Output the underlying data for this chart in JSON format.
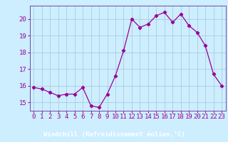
{
  "x": [
    0,
    1,
    2,
    3,
    4,
    5,
    6,
    7,
    8,
    9,
    10,
    11,
    12,
    13,
    14,
    15,
    16,
    17,
    18,
    19,
    20,
    21,
    22,
    23
  ],
  "y": [
    15.9,
    15.8,
    15.6,
    15.4,
    15.5,
    15.5,
    15.9,
    14.8,
    14.7,
    15.5,
    16.6,
    18.1,
    20.0,
    19.5,
    19.7,
    20.2,
    20.4,
    19.8,
    20.3,
    19.6,
    19.2,
    18.4,
    16.7,
    16.0
  ],
  "line_color": "#990099",
  "marker": "D",
  "marker_size": 2.2,
  "bg_color": "#cceeff",
  "footer_bg": "#9966bb",
  "grid_color": "#aaccdd",
  "xlabel": "Windchill (Refroidissement éolien,°C)",
  "ylim": [
    14.5,
    20.8
  ],
  "xlim": [
    -0.5,
    23.5
  ],
  "yticks": [
    15,
    16,
    17,
    18,
    19,
    20
  ],
  "xticks": [
    0,
    1,
    2,
    3,
    4,
    5,
    6,
    7,
    8,
    9,
    10,
    11,
    12,
    13,
    14,
    15,
    16,
    17,
    18,
    19,
    20,
    21,
    22,
    23
  ],
  "xlabel_fontsize": 6.5,
  "tick_fontsize": 6.5,
  "spine_color": "#7744aa"
}
